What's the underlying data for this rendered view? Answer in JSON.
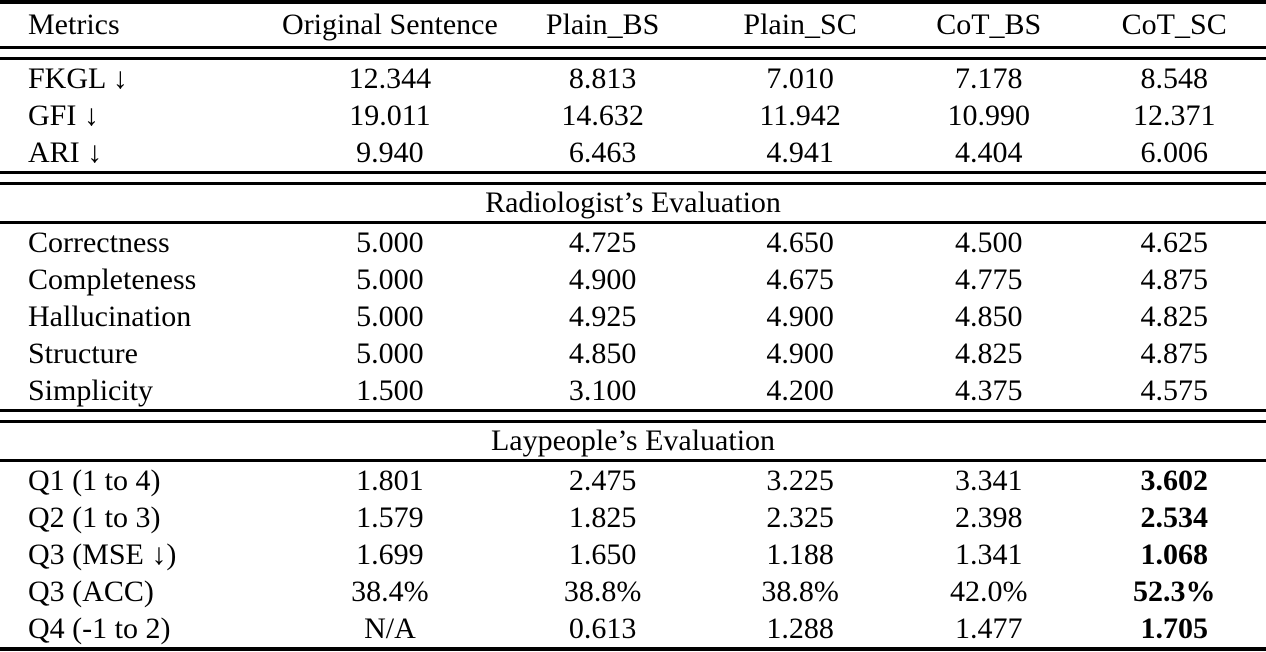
{
  "colors": {
    "background": "#ffffff",
    "text": "#000000",
    "rule": "#000000"
  },
  "table": {
    "columns": [
      "Metrics",
      "Original Sentence",
      "Plain_BS",
      "Plain_SC",
      "CoT_BS",
      "CoT_SC"
    ],
    "sections": [
      {
        "title": "",
        "rows": [
          {
            "metric": "FKGL ↓",
            "values": [
              "12.344",
              "8.813",
              "7.010",
              "7.178",
              "8.548"
            ],
            "bold_last": false
          },
          {
            "metric": "GFI ↓",
            "values": [
              "19.011",
              "14.632",
              "11.942",
              "10.990",
              "12.371"
            ],
            "bold_last": false
          },
          {
            "metric": "ARI ↓",
            "values": [
              "9.940",
              "6.463",
              "4.941",
              "4.404",
              "6.006"
            ],
            "bold_last": false
          }
        ]
      },
      {
        "title": "Radiologist’s Evaluation",
        "rows": [
          {
            "metric": "Correctness",
            "values": [
              "5.000",
              "4.725",
              "4.650",
              "4.500",
              "4.625"
            ],
            "bold_last": false
          },
          {
            "metric": "Completeness",
            "values": [
              "5.000",
              "4.900",
              "4.675",
              "4.775",
              "4.875"
            ],
            "bold_last": false
          },
          {
            "metric": "Hallucination",
            "values": [
              "5.000",
              "4.925",
              "4.900",
              "4.850",
              "4.825"
            ],
            "bold_last": false
          },
          {
            "metric": "Structure",
            "values": [
              "5.000",
              "4.850",
              "4.900",
              "4.825",
              "4.875"
            ],
            "bold_last": false
          },
          {
            "metric": "Simplicity",
            "values": [
              "1.500",
              "3.100",
              "4.200",
              "4.375",
              "4.575"
            ],
            "bold_last": false
          }
        ]
      },
      {
        "title": "Laypeople’s Evaluation",
        "rows": [
          {
            "metric": "Q1 (1 to 4)",
            "values": [
              "1.801",
              "2.475",
              "3.225",
              "3.341",
              "3.602"
            ],
            "bold_last": true
          },
          {
            "metric": "Q2 (1 to 3)",
            "values": [
              "1.579",
              "1.825",
              "2.325",
              "2.398",
              "2.534"
            ],
            "bold_last": true
          },
          {
            "metric": "Q3 (MSE ↓)",
            "values": [
              "1.699",
              "1.650",
              "1.188",
              "1.341",
              "1.068"
            ],
            "bold_last": true
          },
          {
            "metric": "Q3 (ACC)",
            "values": [
              "38.4%",
              "38.8%",
              "38.8%",
              "42.0%",
              "52.3%"
            ],
            "bold_last": true
          },
          {
            "metric": "Q4 (-1 to 2)",
            "values": [
              "N/A",
              "0.613",
              "1.288",
              "1.477",
              "1.705"
            ],
            "bold_last": true
          }
        ]
      }
    ]
  }
}
